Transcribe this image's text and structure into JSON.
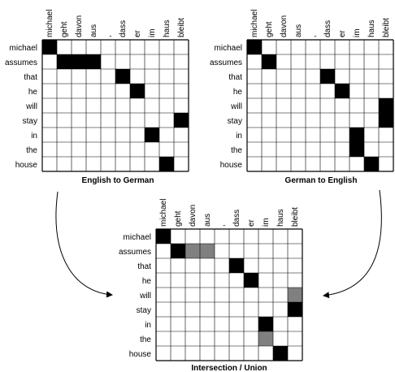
{
  "english_words": [
    "michael",
    "assumes",
    "that",
    "he",
    "will",
    "stay",
    "in",
    "the",
    "house"
  ],
  "german_words": [
    "michael",
    "geht",
    "davon",
    "aus",
    ",",
    "dass",
    "er",
    "im",
    "haus",
    "bleibt"
  ],
  "colors": {
    "black": "#000000",
    "gray": "#808080",
    "grid": "#000000"
  },
  "matrices": {
    "english_to_german": {
      "caption": "English to German",
      "cells": [
        [
          "michael",
          "michael"
        ],
        [
          "assumes",
          "geht"
        ],
        [
          "assumes",
          "davon"
        ],
        [
          "assumes",
          "aus"
        ],
        [
          "that",
          "dass"
        ],
        [
          "he",
          "er"
        ],
        [
          "stay",
          "bleibt"
        ],
        [
          "in",
          "im"
        ],
        [
          "house",
          "haus"
        ]
      ]
    },
    "german_to_english": {
      "caption": "German to English",
      "cells": [
        [
          "michael",
          "michael"
        ],
        [
          "assumes",
          "geht"
        ],
        [
          "that",
          "dass"
        ],
        [
          "he",
          "er"
        ],
        [
          "will",
          "bleibt"
        ],
        [
          "stay",
          "bleibt"
        ],
        [
          "in",
          "im"
        ],
        [
          "the",
          "im"
        ],
        [
          "house",
          "haus"
        ]
      ]
    },
    "intersection_union": {
      "caption": "Intersection / Union",
      "cells_black": [
        [
          "michael",
          "michael"
        ],
        [
          "assumes",
          "geht"
        ],
        [
          "that",
          "dass"
        ],
        [
          "he",
          "er"
        ],
        [
          "stay",
          "bleibt"
        ],
        [
          "in",
          "im"
        ],
        [
          "house",
          "haus"
        ]
      ],
      "cells_gray": [
        [
          "assumes",
          "davon"
        ],
        [
          "assumes",
          "aus"
        ],
        [
          "will",
          "bleibt"
        ],
        [
          "the",
          "im"
        ]
      ]
    }
  }
}
